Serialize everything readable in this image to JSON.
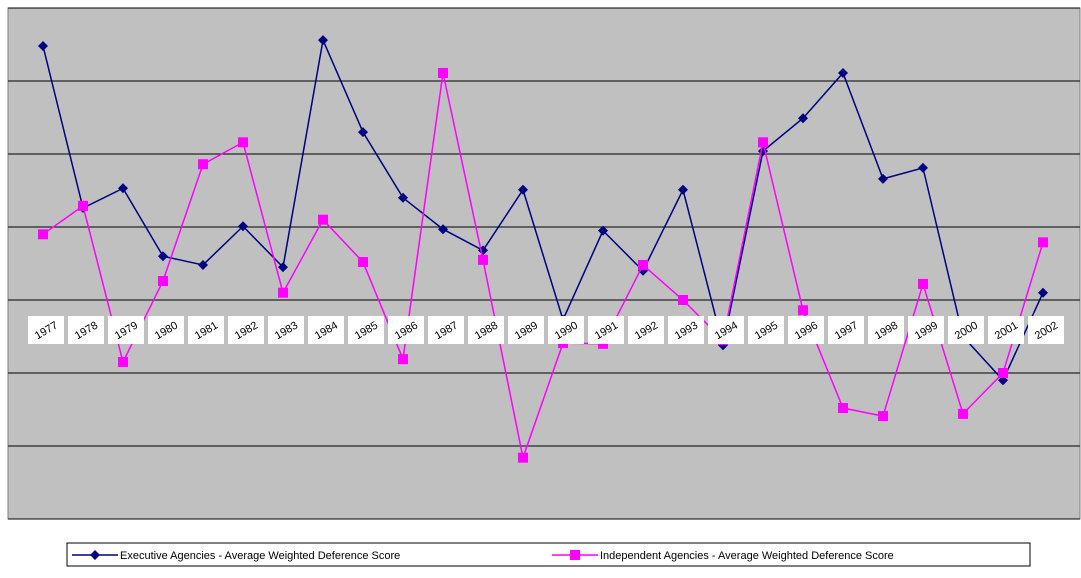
{
  "chart_data": {
    "type": "line",
    "categories": [
      "1977",
      "1978",
      "1979",
      "1980",
      "1981",
      "1982",
      "1983",
      "1984",
      "1985",
      "1986",
      "1987",
      "1988",
      "1989",
      "1990",
      "1991",
      "1992",
      "1993",
      "1994",
      "1995",
      "1996",
      "1997",
      "1998",
      "1999",
      "2000",
      "2001",
      "2002"
    ],
    "series": [
      {
        "name": "Executive Agencies - Average Weighted Deference Score",
        "color": "#000080",
        "values": [
          3.48,
          1.26,
          1.53,
          0.6,
          0.48,
          1.01,
          0.45,
          3.56,
          2.3,
          1.4,
          0.97,
          0.68,
          1.51,
          -0.27,
          0.95,
          0.4,
          1.51,
          -0.62,
          2.04,
          2.49,
          3.11,
          1.66,
          1.81,
          -0.5,
          -1.1,
          0.1
        ]
      },
      {
        "name": "Independent Agencies - Average Weighted Deference Score",
        "color": "#ff00ff",
        "values": [
          0.9,
          1.29,
          -0.85,
          0.26,
          1.86,
          2.16,
          0.1,
          1.1,
          0.52,
          -0.81,
          3.11,
          0.55,
          -2.16,
          -0.59,
          -0.6,
          0.48,
          0,
          -0.55,
          2.16,
          -0.14,
          -1.48,
          -1.59,
          0.22,
          -1.56,
          -1,
          0.79
        ]
      }
    ],
    "ylim": [
      -3,
      4
    ],
    "yticks": [
      -3,
      -2,
      -1,
      0,
      1,
      2,
      3,
      4
    ],
    "grid": true,
    "legend": "bottom",
    "background": "#c0c0c0"
  }
}
